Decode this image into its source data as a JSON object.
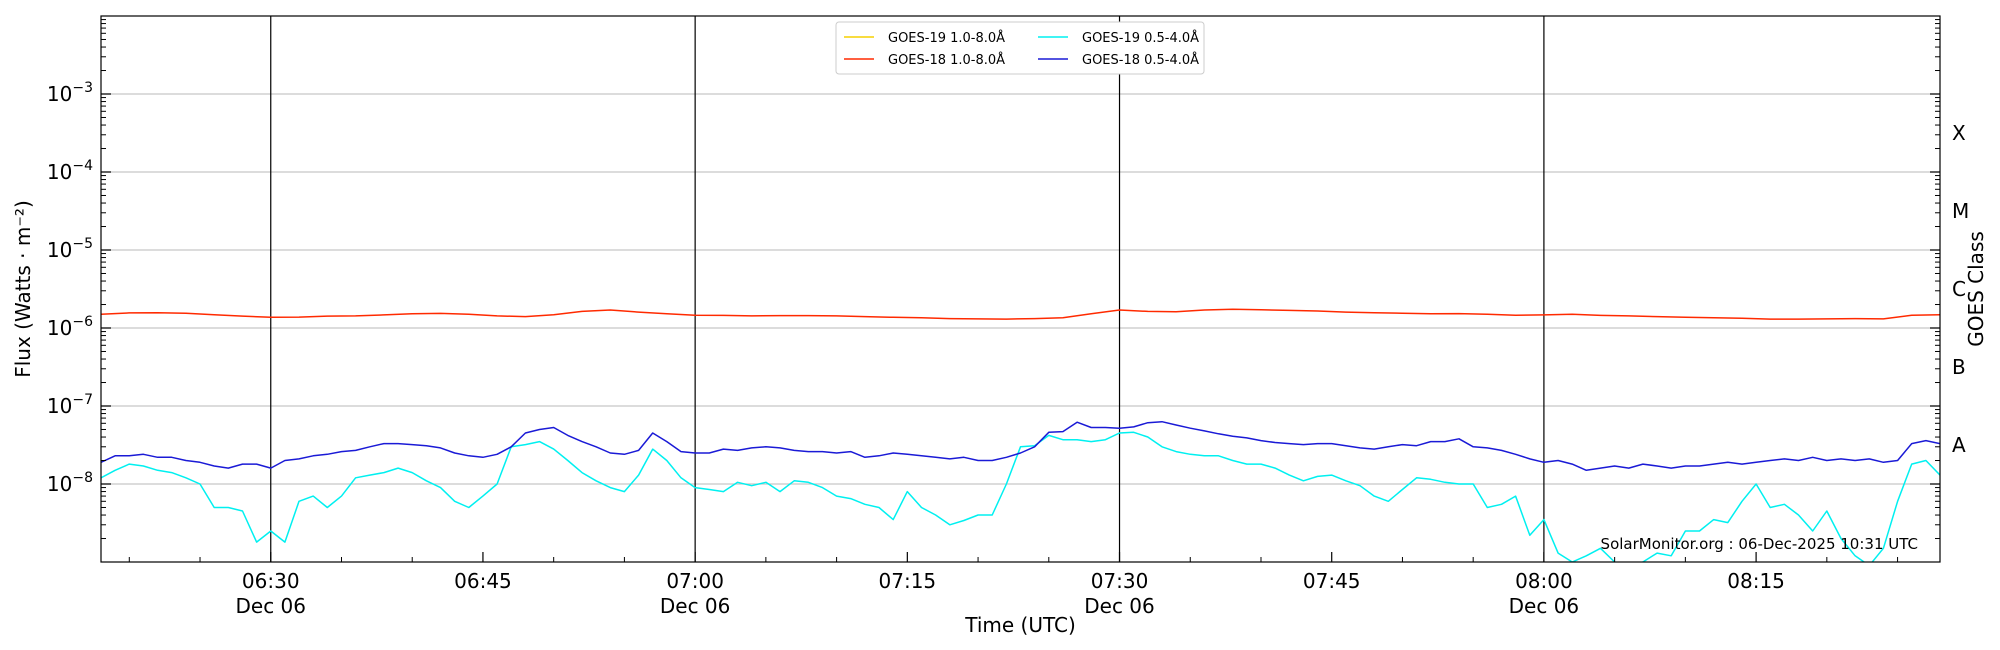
{
  "chart_data": {
    "type": "line",
    "xlabel": "Time (UTC)",
    "ylabel": "Flux (Watts · m⁻²)",
    "right_axis_label": "GOES Class",
    "credit": "SolarMonitor.org : 06-Dec-2025 10:31 UTC",
    "y_scale": "log",
    "ylim": [
      1e-09,
      0.01
    ],
    "x_start": "06:18",
    "x_end": "08:28",
    "x_ticks": [
      {
        "time": "06:30",
        "line1": "06:30",
        "line2": "Dec 06",
        "major": true
      },
      {
        "time": "06:45",
        "line1": "06:45",
        "line2": "",
        "major": false
      },
      {
        "time": "07:00",
        "line1": "07:00",
        "line2": "Dec 06",
        "major": true
      },
      {
        "time": "07:15",
        "line1": "07:15",
        "line2": "",
        "major": false
      },
      {
        "time": "07:30",
        "line1": "07:30",
        "line2": "Dec 06",
        "major": true
      },
      {
        "time": "07:45",
        "line1": "07:45",
        "line2": "",
        "major": false
      },
      {
        "time": "08:00",
        "line1": "08:00",
        "line2": "Dec 06",
        "major": true
      },
      {
        "time": "08:15",
        "line1": "08:15",
        "line2": "",
        "major": false
      }
    ],
    "y_ticks": [
      {
        "exp": -8,
        "label": "10",
        "sup": "−8"
      },
      {
        "exp": -7,
        "label": "10",
        "sup": "−7"
      },
      {
        "exp": -6,
        "label": "10",
        "sup": "−6"
      },
      {
        "exp": -5,
        "label": "10",
        "sup": "−5"
      },
      {
        "exp": -4,
        "label": "10",
        "sup": "−4"
      },
      {
        "exp": -3,
        "label": "10",
        "sup": "−3"
      }
    ],
    "grid": "horizontal",
    "classes": [
      {
        "label": "A",
        "exp": -7.5
      },
      {
        "label": "B",
        "exp": -6.5
      },
      {
        "label": "C",
        "exp": -5.5
      },
      {
        "label": "M",
        "exp": -4.5
      },
      {
        "label": "X",
        "exp": -3.5
      }
    ],
    "legend_position": "top-center",
    "series": [
      {
        "name": "GOES-19 1.0-8.0Å",
        "color": "#f5d000",
        "times": [],
        "values": []
      },
      {
        "name": "GOES-18 1.0-8.0Å",
        "color": "#ff2a00",
        "times": [
          "06:18",
          "06:20",
          "06:22",
          "06:24",
          "06:26",
          "06:28",
          "06:30",
          "06:32",
          "06:34",
          "06:36",
          "06:38",
          "06:40",
          "06:42",
          "06:44",
          "06:46",
          "06:48",
          "06:50",
          "06:52",
          "06:54",
          "06:56",
          "06:58",
          "07:00",
          "07:02",
          "07:04",
          "07:06",
          "07:08",
          "07:10",
          "07:12",
          "07:14",
          "07:16",
          "07:18",
          "07:20",
          "07:22",
          "07:24",
          "07:26",
          "07:28",
          "07:30",
          "07:32",
          "07:34",
          "07:36",
          "07:38",
          "07:40",
          "07:42",
          "07:44",
          "07:46",
          "07:48",
          "07:50",
          "07:52",
          "07:54",
          "07:56",
          "07:58",
          "08:00",
          "08:02",
          "08:04",
          "08:06",
          "08:08",
          "08:10",
          "08:12",
          "08:14",
          "08:16",
          "08:18",
          "08:20",
          "08:22",
          "08:24",
          "08:26",
          "08:28"
        ],
        "values": [
          1.5e-06,
          1.56e-06,
          1.57e-06,
          1.55e-06,
          1.48e-06,
          1.42e-06,
          1.37e-06,
          1.38e-06,
          1.42e-06,
          1.43e-06,
          1.47e-06,
          1.52e-06,
          1.54e-06,
          1.5e-06,
          1.43e-06,
          1.4e-06,
          1.48e-06,
          1.63e-06,
          1.7e-06,
          1.6e-06,
          1.52e-06,
          1.46e-06,
          1.45e-06,
          1.43e-06,
          1.44e-06,
          1.44e-06,
          1.43e-06,
          1.4e-06,
          1.37e-06,
          1.35e-06,
          1.32e-06,
          1.31e-06,
          1.3e-06,
          1.32e-06,
          1.35e-06,
          1.52e-06,
          1.7e-06,
          1.63e-06,
          1.62e-06,
          1.7e-06,
          1.74e-06,
          1.71e-06,
          1.68e-06,
          1.65e-06,
          1.6e-06,
          1.57e-06,
          1.55e-06,
          1.52e-06,
          1.53e-06,
          1.5e-06,
          1.46e-06,
          1.47e-06,
          1.5e-06,
          1.45e-06,
          1.43e-06,
          1.4e-06,
          1.37e-06,
          1.35e-06,
          1.33e-06,
          1.3e-06,
          1.3e-06,
          1.31e-06,
          1.32e-06,
          1.31e-06,
          1.46e-06,
          1.48e-06
        ]
      },
      {
        "name": "GOES-19 0.5-4.0Å",
        "color": "#00f0f0",
        "times": [
          "06:18",
          "06:19",
          "06:20",
          "06:21",
          "06:22",
          "06:23",
          "06:24",
          "06:25",
          "06:26",
          "06:27",
          "06:28",
          "06:29",
          "06:30",
          "06:31",
          "06:32",
          "06:33",
          "06:34",
          "06:35",
          "06:36",
          "06:37",
          "06:38",
          "06:39",
          "06:40",
          "06:41",
          "06:42",
          "06:43",
          "06:44",
          "06:45",
          "06:46",
          "06:47",
          "06:48",
          "06:49",
          "06:50",
          "06:51",
          "06:52",
          "06:53",
          "06:54",
          "06:55",
          "06:56",
          "06:57",
          "06:58",
          "06:59",
          "07:00",
          "07:01",
          "07:02",
          "07:03",
          "07:04",
          "07:05",
          "07:06",
          "07:07",
          "07:08",
          "07:09",
          "07:10",
          "07:11",
          "07:12",
          "07:13",
          "07:14",
          "07:15",
          "07:16",
          "07:17",
          "07:18",
          "07:19",
          "07:20",
          "07:21",
          "07:22",
          "07:23",
          "07:24",
          "07:25",
          "07:26",
          "07:27",
          "07:28",
          "07:29",
          "07:30",
          "07:31",
          "07:32",
          "07:33",
          "07:34",
          "07:35",
          "07:36",
          "07:37",
          "07:38",
          "07:39",
          "07:40",
          "07:41",
          "07:42",
          "07:43",
          "07:44",
          "07:45",
          "07:46",
          "07:47",
          "07:48",
          "07:49",
          "07:50",
          "07:51",
          "07:52",
          "07:53",
          "07:54",
          "07:55",
          "07:56",
          "07:57",
          "07:58",
          "07:59",
          "08:00",
          "08:01",
          "08:02",
          "08:03",
          "08:04",
          "08:05",
          "08:06",
          "08:07",
          "08:08",
          "08:09",
          "08:10",
          "08:11",
          "08:12",
          "08:13",
          "08:14",
          "08:15",
          "08:16",
          "08:17",
          "08:18",
          "08:19",
          "08:20",
          "08:21",
          "08:22",
          "08:23",
          "08:24",
          "08:25",
          "08:26",
          "08:27",
          "08:28"
        ],
        "values": [
          1.2e-08,
          1.5e-08,
          1.8e-08,
          1.7e-08,
          1.5e-08,
          1.4e-08,
          1.2e-08,
          1e-08,
          5e-09,
          5e-09,
          4.5e-09,
          1.8e-09,
          2.5e-09,
          1.8e-09,
          6e-09,
          7e-09,
          5e-09,
          7e-09,
          1.2e-08,
          1.3e-08,
          1.4e-08,
          1.6e-08,
          1.4e-08,
          1.1e-08,
          9e-09,
          6e-09,
          5e-09,
          7e-09,
          1e-08,
          3e-08,
          3.2e-08,
          3.5e-08,
          2.8e-08,
          2e-08,
          1.4e-08,
          1.1e-08,
          9e-09,
          8e-09,
          1.3e-08,
          2.8e-08,
          2e-08,
          1.2e-08,
          9e-09,
          8.5e-09,
          8e-09,
          1.05e-08,
          9.5e-09,
          1.05e-08,
          8e-09,
          1.1e-08,
          1.05e-08,
          9e-09,
          7e-09,
          6.5e-09,
          5.5e-09,
          5e-09,
          3.5e-09,
          8e-09,
          5e-09,
          4e-09,
          3e-09,
          3.4e-09,
          4e-09,
          4e-09,
          1e-08,
          3e-08,
          3.1e-08,
          4.2e-08,
          3.7e-08,
          3.7e-08,
          3.5e-08,
          3.7e-08,
          4.5e-08,
          4.6e-08,
          4e-08,
          3e-08,
          2.6e-08,
          2.4e-08,
          2.3e-08,
          2.3e-08,
          2e-08,
          1.8e-08,
          1.8e-08,
          1.6e-08,
          1.3e-08,
          1.1e-08,
          1.25e-08,
          1.3e-08,
          1.1e-08,
          9.5e-09,
          7e-09,
          6e-09,
          8.5e-09,
          1.2e-08,
          1.15e-08,
          1.05e-08,
          1e-08,
          1e-08,
          5e-09,
          5.5e-09,
          7e-09,
          2.2e-09,
          3.5e-09,
          1.3e-09,
          1e-09,
          1.2e-09,
          1.5e-09,
          1e-09,
          9e-10,
          1e-09,
          1.3e-09,
          1.2e-09,
          2.5e-09,
          2.5e-09,
          3.5e-09,
          3.2e-09,
          6e-09,
          1e-08,
          5e-09,
          5.5e-09,
          4e-09,
          2.5e-09,
          4.5e-09,
          2e-09,
          1.2e-09,
          9e-10,
          1.5e-09,
          6e-09,
          1.8e-08,
          2e-08,
          1.3e-08
        ]
      },
      {
        "name": "GOES-18 0.5-4.0Å",
        "color": "#1a1ad6",
        "times": [
          "06:18",
          "06:19",
          "06:20",
          "06:21",
          "06:22",
          "06:23",
          "06:24",
          "06:25",
          "06:26",
          "06:27",
          "06:28",
          "06:29",
          "06:30",
          "06:31",
          "06:32",
          "06:33",
          "06:34",
          "06:35",
          "06:36",
          "06:37",
          "06:38",
          "06:39",
          "06:40",
          "06:41",
          "06:42",
          "06:43",
          "06:44",
          "06:45",
          "06:46",
          "06:47",
          "06:48",
          "06:49",
          "06:50",
          "06:51",
          "06:52",
          "06:53",
          "06:54",
          "06:55",
          "06:56",
          "06:57",
          "06:58",
          "06:59",
          "07:00",
          "07:01",
          "07:02",
          "07:03",
          "07:04",
          "07:05",
          "07:06",
          "07:07",
          "07:08",
          "07:09",
          "07:10",
          "07:11",
          "07:12",
          "07:13",
          "07:14",
          "07:15",
          "07:16",
          "07:17",
          "07:18",
          "07:19",
          "07:20",
          "07:21",
          "07:22",
          "07:23",
          "07:24",
          "07:25",
          "07:26",
          "07:27",
          "07:28",
          "07:29",
          "07:30",
          "07:31",
          "07:32",
          "07:33",
          "07:34",
          "07:35",
          "07:36",
          "07:37",
          "07:38",
          "07:39",
          "07:40",
          "07:41",
          "07:42",
          "07:43",
          "07:44",
          "07:45",
          "07:46",
          "07:47",
          "07:48",
          "07:49",
          "07:50",
          "07:51",
          "07:52",
          "07:53",
          "07:54",
          "07:55",
          "07:56",
          "07:57",
          "07:58",
          "07:59",
          "08:00",
          "08:01",
          "08:02",
          "08:03",
          "08:04",
          "08:05",
          "08:06",
          "08:07",
          "08:08",
          "08:09",
          "08:10",
          "08:11",
          "08:12",
          "08:13",
          "08:14",
          "08:15",
          "08:16",
          "08:17",
          "08:18",
          "08:19",
          "08:20",
          "08:21",
          "08:22",
          "08:23",
          "08:24",
          "08:25",
          "08:26",
          "08:27",
          "08:28"
        ],
        "values": [
          1.9e-08,
          2.3e-08,
          2.3e-08,
          2.4e-08,
          2.2e-08,
          2.2e-08,
          2e-08,
          1.9e-08,
          1.7e-08,
          1.6e-08,
          1.8e-08,
          1.8e-08,
          1.6e-08,
          2e-08,
          2.1e-08,
          2.3e-08,
          2.4e-08,
          2.6e-08,
          2.7e-08,
          3e-08,
          3.3e-08,
          3.3e-08,
          3.2e-08,
          3.1e-08,
          2.9e-08,
          2.5e-08,
          2.3e-08,
          2.2e-08,
          2.4e-08,
          3e-08,
          4.5e-08,
          5e-08,
          5.3e-08,
          4.2e-08,
          3.5e-08,
          3e-08,
          2.5e-08,
          2.4e-08,
          2.7e-08,
          4.5e-08,
          3.5e-08,
          2.6e-08,
          2.5e-08,
          2.5e-08,
          2.8e-08,
          2.7e-08,
          2.9e-08,
          3e-08,
          2.9e-08,
          2.7e-08,
          2.6e-08,
          2.6e-08,
          2.5e-08,
          2.6e-08,
          2.2e-08,
          2.3e-08,
          2.5e-08,
          2.4e-08,
          2.3e-08,
          2.2e-08,
          2.1e-08,
          2.2e-08,
          2e-08,
          2e-08,
          2.2e-08,
          2.5e-08,
          3e-08,
          4.6e-08,
          4.7e-08,
          6.2e-08,
          5.3e-08,
          5.3e-08,
          5.2e-08,
          5.4e-08,
          6.1e-08,
          6.3e-08,
          5.7e-08,
          5.2e-08,
          4.8e-08,
          4.4e-08,
          4.1e-08,
          3.9e-08,
          3.6e-08,
          3.4e-08,
          3.3e-08,
          3.2e-08,
          3.3e-08,
          3.3e-08,
          3.1e-08,
          2.9e-08,
          2.8e-08,
          3e-08,
          3.2e-08,
          3.1e-08,
          3.5e-08,
          3.5e-08,
          3.8e-08,
          3e-08,
          2.9e-08,
          2.7e-08,
          2.4e-08,
          2.1e-08,
          1.9e-08,
          2e-08,
          1.8e-08,
          1.5e-08,
          1.6e-08,
          1.7e-08,
          1.6e-08,
          1.8e-08,
          1.7e-08,
          1.6e-08,
          1.7e-08,
          1.7e-08,
          1.8e-08,
          1.9e-08,
          1.8e-08,
          1.9e-08,
          2e-08,
          2.1e-08,
          2e-08,
          2.2e-08,
          2e-08,
          2.1e-08,
          2e-08,
          2.1e-08,
          1.9e-08,
          2e-08,
          3.3e-08,
          3.6e-08,
          3.3e-08
        ]
      }
    ]
  }
}
